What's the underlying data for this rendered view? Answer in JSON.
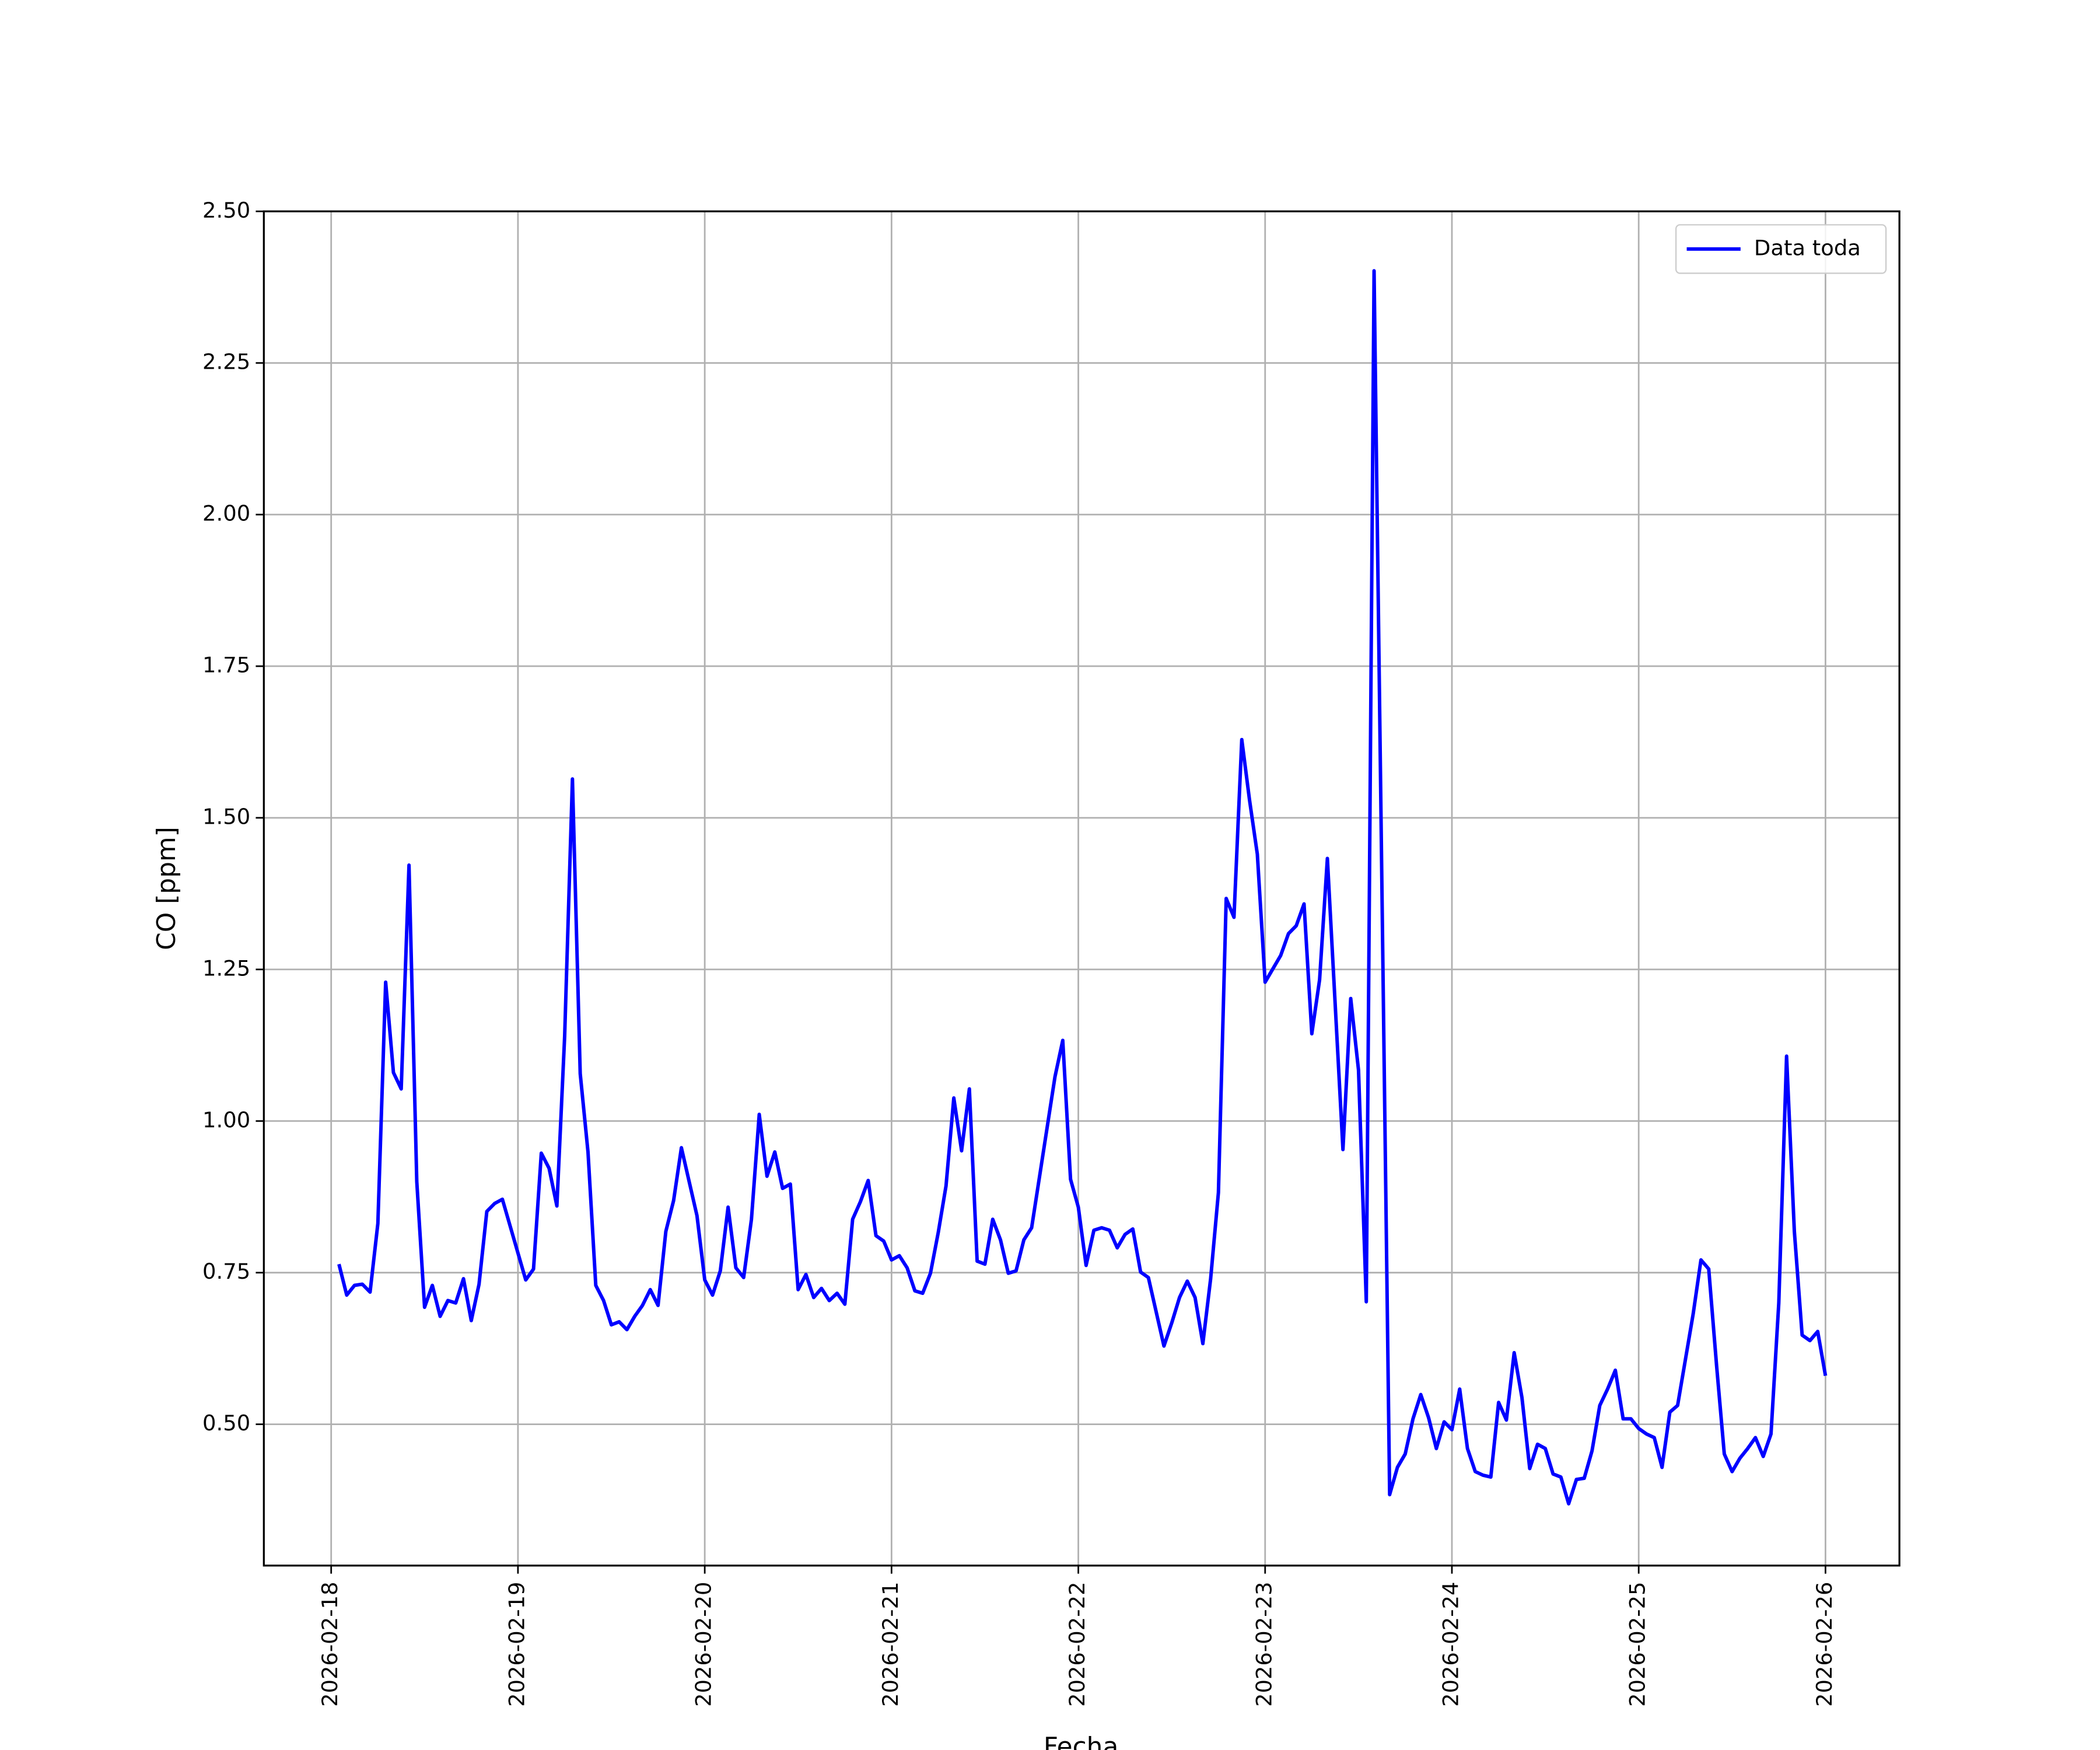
{
  "chart_data": {
    "type": "line",
    "xlabel": "Fecha",
    "ylabel": "CO [ppm]",
    "xlim": [
      "2026-02-17T15:21",
      "2026-02-26T09:30"
    ],
    "ylim": [
      0.267,
      2.5
    ],
    "xticks": [
      "2026-02-18",
      "2026-02-19",
      "2026-02-20",
      "2026-02-21",
      "2026-02-22",
      "2026-02-23",
      "2026-02-24",
      "2026-02-25",
      "2026-02-26"
    ],
    "yticks": [
      {
        "value": 0.5,
        "label": "0.50"
      },
      {
        "value": 0.75,
        "label": "0.75"
      },
      {
        "value": 1.0,
        "label": "1.00"
      },
      {
        "value": 1.25,
        "label": "1.25"
      },
      {
        "value": 1.5,
        "label": "1.50"
      },
      {
        "value": 1.75,
        "label": "1.75"
      },
      {
        "value": 2.0,
        "label": "2.00"
      },
      {
        "value": 2.25,
        "label": "2.25"
      },
      {
        "value": 2.5,
        "label": "2.50"
      }
    ],
    "grid": true,
    "legend": "upper right",
    "x": [
      "2026-02-18T01:00",
      "2026-02-18T02:00",
      "2026-02-18T03:00",
      "2026-02-18T04:00",
      "2026-02-18T05:00",
      "2026-02-18T06:00",
      "2026-02-18T07:00",
      "2026-02-18T08:00",
      "2026-02-18T09:00",
      "2026-02-18T10:00",
      "2026-02-18T11:00",
      "2026-02-18T12:00",
      "2026-02-18T13:00",
      "2026-02-18T14:00",
      "2026-02-18T15:00",
      "2026-02-18T16:00",
      "2026-02-18T17:00",
      "2026-02-18T18:00",
      "2026-02-18T19:00",
      "2026-02-18T20:00",
      "2026-02-18T21:00",
      "2026-02-18T22:00",
      "2026-02-19T01:00",
      "2026-02-19T02:00",
      "2026-02-19T03:00",
      "2026-02-19T04:00",
      "2026-02-19T05:00",
      "2026-02-19T06:00",
      "2026-02-19T07:00",
      "2026-02-19T08:00",
      "2026-02-19T09:00",
      "2026-02-19T10:00",
      "2026-02-19T11:00",
      "2026-02-19T12:00",
      "2026-02-19T13:00",
      "2026-02-19T14:00",
      "2026-02-19T15:00",
      "2026-02-19T16:00",
      "2026-02-19T17:00",
      "2026-02-19T18:00",
      "2026-02-19T19:00",
      "2026-02-19T20:00",
      "2026-02-19T21:00",
      "2026-02-19T23:00",
      "2026-02-20T00:00",
      "2026-02-20T01:00",
      "2026-02-20T02:00",
      "2026-02-20T03:00",
      "2026-02-20T04:00",
      "2026-02-20T05:00",
      "2026-02-20T06:00",
      "2026-02-20T07:00",
      "2026-02-20T08:00",
      "2026-02-20T09:00",
      "2026-02-20T10:00",
      "2026-02-20T11:00",
      "2026-02-20T12:00",
      "2026-02-20T13:00",
      "2026-02-20T14:00",
      "2026-02-20T15:00",
      "2026-02-20T16:00",
      "2026-02-20T17:00",
      "2026-02-20T18:00",
      "2026-02-20T19:00",
      "2026-02-20T20:00",
      "2026-02-20T21:00",
      "2026-02-20T22:00",
      "2026-02-20T23:00",
      "2026-02-21T00:00",
      "2026-02-21T01:00",
      "2026-02-21T02:00",
      "2026-02-21T03:00",
      "2026-02-21T04:00",
      "2026-02-21T05:00",
      "2026-02-21T06:00",
      "2026-02-21T07:00",
      "2026-02-21T08:00",
      "2026-02-21T09:00",
      "2026-02-21T10:00",
      "2026-02-21T11:00",
      "2026-02-21T12:00",
      "2026-02-21T13:00",
      "2026-02-21T14:00",
      "2026-02-21T15:00",
      "2026-02-21T16:00",
      "2026-02-21T17:00",
      "2026-02-21T18:00",
      "2026-02-21T21:00",
      "2026-02-21T22:00",
      "2026-02-21T23:00",
      "2026-02-22T00:00",
      "2026-02-22T01:00",
      "2026-02-22T02:00",
      "2026-02-22T03:00",
      "2026-02-22T04:00",
      "2026-02-22T05:00",
      "2026-02-22T06:00",
      "2026-02-22T07:00",
      "2026-02-22T08:00",
      "2026-02-22T09:00",
      "2026-02-22T11:00",
      "2026-02-22T12:00",
      "2026-02-22T13:00",
      "2026-02-22T14:00",
      "2026-02-22T15:00",
      "2026-02-22T16:00",
      "2026-02-22T17:00",
      "2026-02-22T18:00",
      "2026-02-22T19:00",
      "2026-02-22T20:00",
      "2026-02-22T21:00",
      "2026-02-22T22:00",
      "2026-02-22T23:00",
      "2026-02-23T00:00",
      "2026-02-23T01:00",
      "2026-02-23T02:00",
      "2026-02-23T03:00",
      "2026-02-23T04:00",
      "2026-02-23T05:00",
      "2026-02-23T06:00",
      "2026-02-23T07:00",
      "2026-02-23T08:00",
      "2026-02-23T10:00",
      "2026-02-23T11:00",
      "2026-02-23T12:00",
      "2026-02-23T13:00",
      "2026-02-23T14:00",
      "2026-02-23T16:00",
      "2026-02-23T17:00",
      "2026-02-23T18:00",
      "2026-02-23T19:00",
      "2026-02-23T20:00",
      "2026-02-23T21:00",
      "2026-02-23T22:00",
      "2026-02-23T23:00",
      "2026-02-24T00:00",
      "2026-02-24T01:00",
      "2026-02-24T02:00",
      "2026-02-24T03:00",
      "2026-02-24T04:00",
      "2026-02-24T05:00",
      "2026-02-24T06:00",
      "2026-02-24T07:00",
      "2026-02-24T08:00",
      "2026-02-24T09:00",
      "2026-02-24T10:00",
      "2026-02-24T11:00",
      "2026-02-24T12:00",
      "2026-02-24T13:00",
      "2026-02-24T14:00",
      "2026-02-24T15:00",
      "2026-02-24T16:00",
      "2026-02-24T17:00",
      "2026-02-24T18:00",
      "2026-02-24T19:00",
      "2026-02-24T20:00",
      "2026-02-24T21:00",
      "2026-02-24T22:00",
      "2026-02-24T23:00",
      "2026-02-25T00:00",
      "2026-02-25T01:00",
      "2026-02-25T02:00",
      "2026-02-25T03:00",
      "2026-02-25T04:00",
      "2026-02-25T05:00",
      "2026-02-25T07:00",
      "2026-02-25T08:00",
      "2026-02-25T09:00",
      "2026-02-25T10:00",
      "2026-02-25T11:00",
      "2026-02-25T12:00",
      "2026-02-25T13:00",
      "2026-02-25T14:00",
      "2026-02-25T15:00",
      "2026-02-25T16:00",
      "2026-02-25T17:00",
      "2026-02-25T18:00",
      "2026-02-25T19:00",
      "2026-02-25T20:00",
      "2026-02-25T21:00",
      "2026-02-25T22:00",
      "2026-02-25T23:00",
      "2026-02-26T00:00"
    ],
    "series": [
      {
        "name": "Data toda",
        "color": "#0000ff",
        "values": [
          0.764,
          0.713,
          0.729,
          0.731,
          0.718,
          0.831,
          1.229,
          1.08,
          1.053,
          1.422,
          0.9,
          0.693,
          0.729,
          0.678,
          0.704,
          0.7,
          0.74,
          0.671,
          0.731,
          0.851,
          0.864,
          0.871,
          0.738,
          0.756,
          0.947,
          0.922,
          0.86,
          1.14,
          1.564,
          1.078,
          0.949,
          0.729,
          0.704,
          0.664,
          0.669,
          0.656,
          0.678,
          0.696,
          0.722,
          0.696,
          0.818,
          0.869,
          0.956,
          0.844,
          0.738,
          0.713,
          0.753,
          0.858,
          0.758,
          0.742,
          0.838,
          1.011,
          0.909,
          0.949,
          0.889,
          0.896,
          0.722,
          0.747,
          0.709,
          0.724,
          0.704,
          0.716,
          0.698,
          0.838,
          0.867,
          0.902,
          0.811,
          0.802,
          0.771,
          0.778,
          0.758,
          0.72,
          0.716,
          0.749,
          0.816,
          0.893,
          1.038,
          0.951,
          1.053,
          0.769,
          0.764,
          0.838,
          0.804,
          0.749,
          0.753,
          0.804,
          0.824,
          1.073,
          1.133,
          0.904,
          0.858,
          0.762,
          0.82,
          0.824,
          0.82,
          0.791,
          0.813,
          0.822,
          0.751,
          0.742,
          0.629,
          0.667,
          0.709,
          0.736,
          0.709,
          0.633,
          0.74,
          0.882,
          1.367,
          1.336,
          1.629,
          1.529,
          1.44,
          1.229,
          1.251,
          1.273,
          1.309,
          1.322,
          1.358,
          1.144,
          1.233,
          1.433,
          0.953,
          1.202,
          1.084,
          0.702,
          2.402,
          0.384,
          0.429,
          0.451,
          0.509,
          0.549,
          0.511,
          0.46,
          0.504,
          0.491,
          0.558,
          0.46,
          0.422,
          0.416,
          0.413,
          0.536,
          0.507,
          0.618,
          0.544,
          0.427,
          0.467,
          0.46,
          0.418,
          0.413,
          0.369,
          0.409,
          0.411,
          0.456,
          0.531,
          0.558,
          0.589,
          0.509,
          0.509,
          0.493,
          0.484,
          0.478,
          0.429,
          0.52,
          0.531,
          0.682,
          0.771,
          0.756,
          0.598,
          0.451,
          0.422,
          0.444,
          0.46,
          0.478,
          0.447,
          0.484,
          0.7,
          1.107,
          0.818,
          0.647,
          0.638,
          0.653,
          0.58
        ]
      }
    ]
  }
}
